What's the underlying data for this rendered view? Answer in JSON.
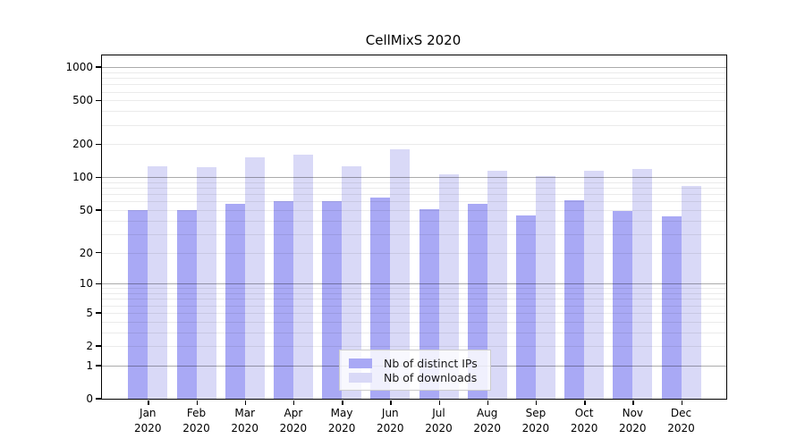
{
  "title": "CellMixS 2020",
  "chart_data": {
    "type": "bar",
    "title": "CellMixS 2020",
    "scale": "log1p",
    "categories": [
      "Jan",
      "Feb",
      "Mar",
      "Apr",
      "May",
      "Jun",
      "Jul",
      "Aug",
      "Sep",
      "Oct",
      "Nov",
      "Dec"
    ],
    "year": "2020",
    "series": [
      {
        "name": "Nb of distinct IPs",
        "color": "#a9a9f5",
        "values": [
          50,
          50,
          57,
          61,
          60,
          65,
          51,
          57,
          45,
          62,
          49,
          44
        ]
      },
      {
        "name": "Nb of downloads",
        "color": "#d9d9f7",
        "values": [
          126,
          123,
          153,
          160,
          126,
          181,
          106,
          115,
          103,
          114,
          120,
          84
        ]
      }
    ],
    "yticks": [
      0,
      1,
      2,
      5,
      10,
      20,
      50,
      100,
      200,
      500,
      1000
    ],
    "ylim": [
      0,
      1280
    ],
    "grid": true,
    "legend_position": "lower-center",
    "colors": {
      "bar_ips": "#a9a9f5",
      "bar_downloads": "#d9d9f7",
      "major_grid": "#b0b0b0",
      "minor_grid": "#ebebeb",
      "axis": "#000000"
    }
  }
}
